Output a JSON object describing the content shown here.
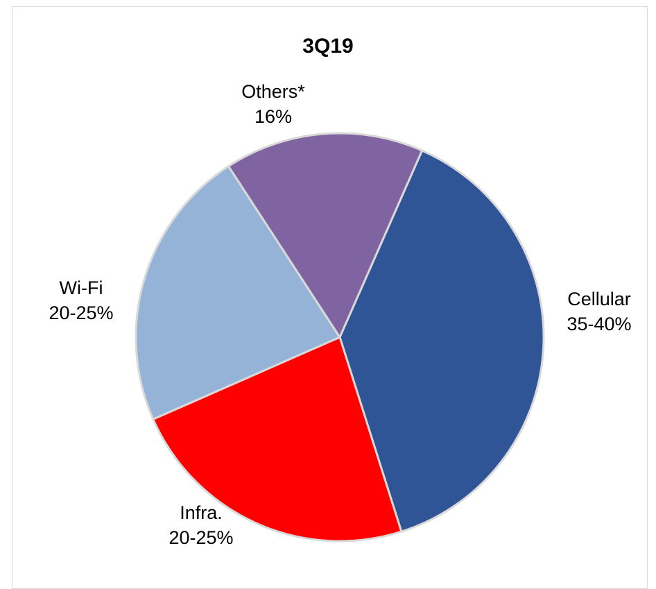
{
  "chart_data": {
    "type": "pie",
    "title": "3Q19",
    "slices": [
      {
        "category": "Cellular",
        "value_label": "35-40%",
        "value": 38.5,
        "color": "#2f5597"
      },
      {
        "category": "Infra.",
        "value_label": "20-25%",
        "value": 23.3,
        "color": "#ff0000"
      },
      {
        "category": "Wi-Fi",
        "value_label": "20-25%",
        "value": 22.4,
        "color": "#95b3d7"
      },
      {
        "category": "Others*",
        "value_label": "16%",
        "value": 15.8,
        "color": "#8064a2"
      }
    ],
    "slice_border_color": "#d9d9d9",
    "legend": "none"
  }
}
